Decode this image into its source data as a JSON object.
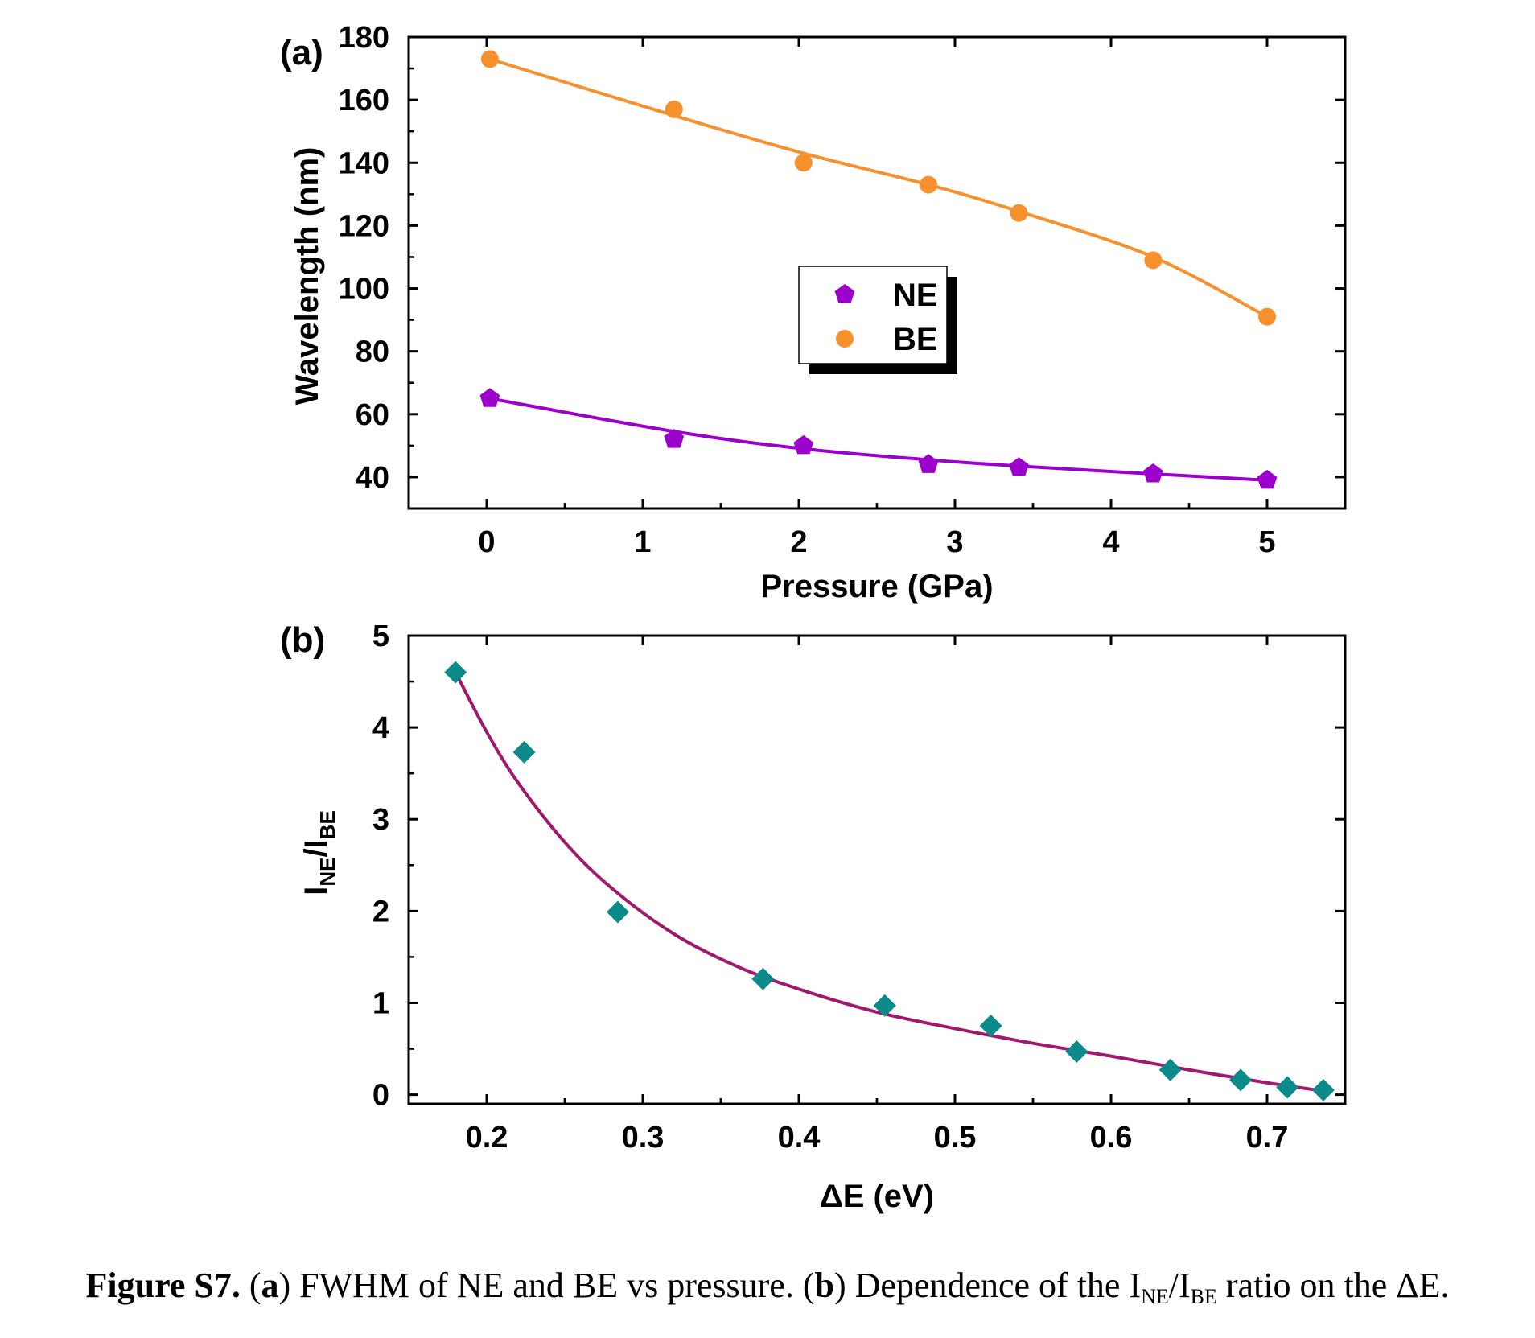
{
  "panel_a": {
    "label": "(a)",
    "chart_data": {
      "type": "scatter",
      "xlabel": "Pressure (GPa)",
      "ylabel": "Wavelength (nm)",
      "xlim": [
        -0.5,
        5.5
      ],
      "ylim": [
        30,
        180
      ],
      "xticks": [
        "0",
        "1",
        "2",
        "3",
        "4",
        "5"
      ],
      "yticks": [
        "40",
        "60",
        "80",
        "100",
        "120",
        "140",
        "160",
        "180"
      ],
      "legend_position": "center",
      "series": [
        {
          "name": "NE",
          "marker": "pentagon",
          "color": "#9b00cc",
          "x": [
            0.02,
            1.2,
            2.03,
            2.83,
            3.41,
            4.27,
            5.0
          ],
          "y": [
            65,
            52,
            50,
            44,
            43,
            41,
            39
          ],
          "fit_y": [
            65,
            54.5,
            49,
            45.5,
            43.5,
            41,
            39
          ]
        },
        {
          "name": "BE",
          "marker": "circle",
          "color": "#f7912e",
          "x": [
            0.02,
            1.2,
            2.03,
            2.83,
            3.41,
            4.27,
            5.0
          ],
          "y": [
            173,
            157,
            140,
            133,
            124,
            109,
            91
          ],
          "fit_y": [
            173,
            155,
            143,
            133,
            124.5,
            110,
            91
          ]
        }
      ]
    }
  },
  "panel_b": {
    "label": "(b)",
    "chart_data": {
      "type": "scatter",
      "xlabel": "ΔE (eV)",
      "ylabel_main": "I",
      "ylabel_sub1": "NE",
      "ylabel_mid": "/I",
      "ylabel_sub2": "BE",
      "xlim": [
        0.15,
        0.75
      ],
      "ylim": [
        -0.1,
        5
      ],
      "xticks": [
        "0.2",
        "0.3",
        "0.4",
        "0.5",
        "0.6",
        "0.7"
      ],
      "yticks": [
        "0",
        "1",
        "2",
        "3",
        "4",
        "5"
      ],
      "series": [
        {
          "marker": "diamond",
          "color": "#0d8a8a",
          "fit_color": "#a0196e",
          "x": [
            0.18,
            0.224,
            0.284,
            0.377,
            0.455,
            0.523,
            0.578,
            0.638,
            0.683,
            0.713,
            0.736
          ],
          "y": [
            4.6,
            3.73,
            1.99,
            1.26,
            0.97,
            0.75,
            0.47,
            0.27,
            0.16,
            0.08,
            0.05
          ],
          "fit_x": [
            0.18,
            0.2,
            0.22,
            0.25,
            0.28,
            0.32,
            0.36,
            0.4,
            0.45,
            0.5,
            0.55,
            0.6,
            0.65,
            0.7,
            0.736
          ],
          "fit_y": [
            4.6,
            3.95,
            3.4,
            2.75,
            2.25,
            1.75,
            1.4,
            1.15,
            0.9,
            0.72,
            0.56,
            0.42,
            0.27,
            0.13,
            0.04
          ]
        }
      ]
    }
  },
  "caption": {
    "label": "Figure S7.",
    "paren_open_a": " (",
    "part_a": "a",
    "text_a": ") FWHM of NE and BE vs pressure. (",
    "part_b": "b",
    "text_b": ") Dependence of the I",
    "sub_ne": "NE",
    "slash": "/I",
    "sub_be": "BE",
    "text_end": " ratio on the ΔE."
  }
}
